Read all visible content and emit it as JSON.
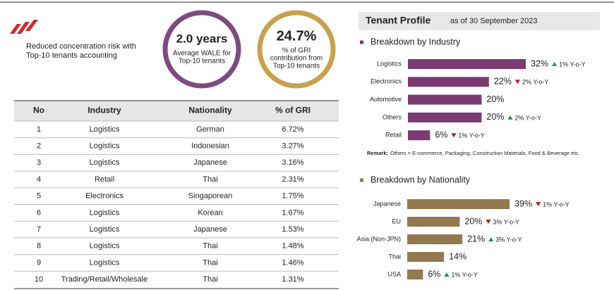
{
  "header": {
    "lines": [
      "Reduced concentration risk with",
      "Top-10 tenants accounting"
    ]
  },
  "stats": [
    {
      "value": "2.0 years",
      "lines": [
        "Average WALE for",
        "Top-10 tenants"
      ]
    },
    {
      "value": "24.7%",
      "lines": [
        "% of GRI",
        "contribution from",
        "Top-10 tenants"
      ]
    }
  ],
  "table": {
    "columns": [
      "No",
      "Industry",
      "Nationality",
      "% of GRI"
    ],
    "rows": [
      [
        "1",
        "Logistics",
        "German",
        "6.72%"
      ],
      [
        "2",
        "Logistics",
        "Indonesian",
        "3.27%"
      ],
      [
        "3",
        "Logistics",
        "Japanese",
        "3.16%"
      ],
      [
        "4",
        "Retail",
        "Thai",
        "2.31%"
      ],
      [
        "5",
        "Electronics",
        "Singaporean",
        "1.75%"
      ],
      [
        "6",
        "Logistics",
        "Korean",
        "1.67%"
      ],
      [
        "7",
        "Logistics",
        "Japanese",
        "1.53%"
      ],
      [
        "8",
        "Logistics",
        "Thai",
        "1.48%"
      ],
      [
        "9",
        "Logistics",
        "Thai",
        "1.46%"
      ],
      [
        "10",
        "Trading/Retail/Wholesale",
        "Thai",
        "1.31%"
      ]
    ]
  },
  "profile": {
    "title": "Tenant Profile",
    "date": "as of 30 September 2023"
  },
  "industry": {
    "title": "Breakdown by Industry",
    "color": "#7b3a72",
    "categories": [
      "Logistics",
      "Electronics",
      "Automotive",
      "Others",
      "Retail"
    ],
    "values": [
      32,
      22,
      20,
      20,
      6
    ],
    "value_labels": [
      "32%",
      "22%",
      "20%",
      "20%",
      "6%"
    ],
    "changes": [
      "1% Y-o-Y",
      "2% Y-o-Y",
      null,
      "2% Y-o-Y",
      "1% Y-o-Y"
    ],
    "directions": [
      "up",
      "down",
      null,
      "up",
      "down"
    ],
    "remark_label": "Remark:",
    "remark": "Others = E-commerce, Packaging, Construction Materials, Food & Beverage etc."
  },
  "nationality": {
    "title": "Breakdown by Nationality",
    "color": "#94784f",
    "categories": [
      "Japanese",
      "EU",
      "Asia (Non-JPN)",
      "Thai",
      "USA"
    ],
    "values": [
      39,
      20,
      21,
      14,
      6
    ],
    "value_labels": [
      "39%",
      "20%",
      "21%",
      "14%",
      "6%"
    ],
    "changes": [
      "1% Y-o-Y",
      "3% Y-o-Y",
      "3% Y-o-Y",
      null,
      "1% Y-o-Y"
    ],
    "directions": [
      "down",
      "down",
      "up",
      null,
      "up"
    ]
  }
}
